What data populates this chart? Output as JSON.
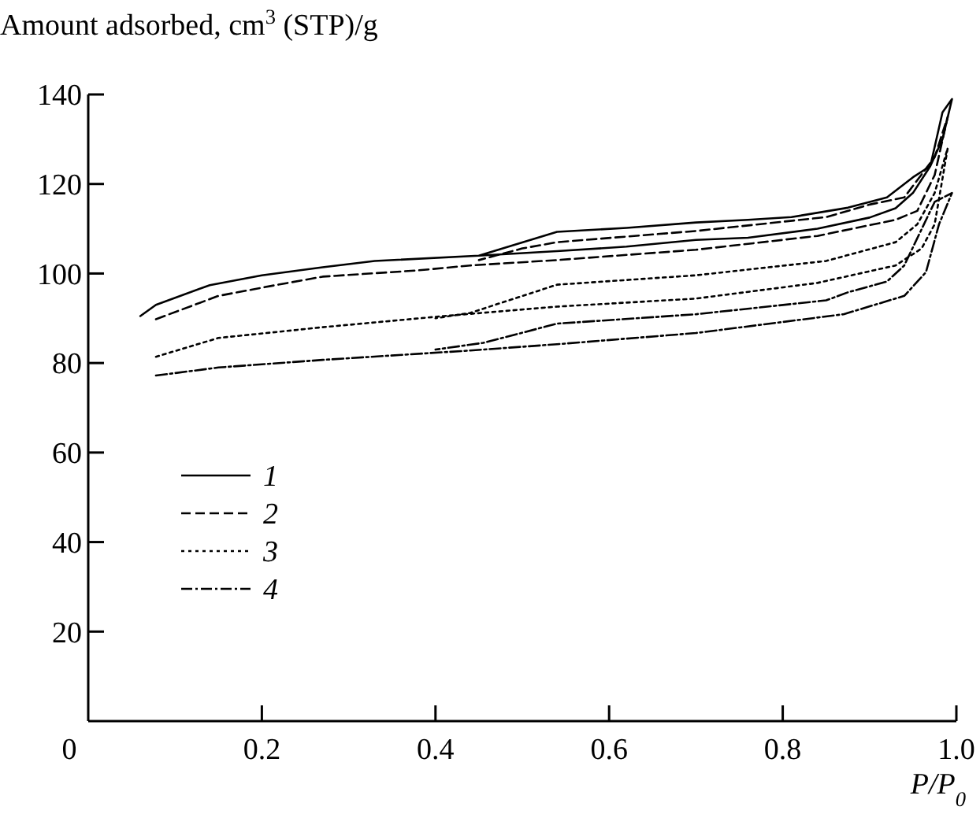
{
  "chart_data": {
    "type": "line",
    "xlabel": "P/P$_{0}$",
    "ylabel": "Amount adsorbed, cm$^{3}$ (STP)/g",
    "xlim": [
      0,
      1
    ],
    "ylim": [
      0,
      140
    ],
    "xticks": [
      0,
      0.2,
      0.4,
      0.6,
      0.8,
      {
        "value": 1,
        "label": "1.0"
      }
    ],
    "yticks": [
      20,
      40,
      60,
      80,
      100,
      120,
      140
    ],
    "grid": false,
    "legend": "left",
    "marker": "none",
    "series": [
      {
        "name": "1",
        "color": "#000000",
        "line_style": "solid",
        "x": [
          0.06,
          0.078,
          0.14,
          0.2,
          0.27,
          0.33,
          0.45,
          0.54,
          0.62,
          0.7,
          0.76,
          0.84,
          0.9,
          0.93,
          0.95,
          0.97,
          0.984,
          0.995,
          0.984,
          0.97,
          0.95,
          0.92,
          0.875,
          0.81,
          0.76,
          0.7,
          0.62,
          0.54,
          0.45
        ],
        "values": [
          90.5,
          93,
          97.4,
          99.6,
          101.4,
          102.8,
          104,
          105,
          106,
          107.5,
          108,
          110,
          112.5,
          114.6,
          118,
          124,
          130,
          139,
          136,
          124,
          121.5,
          117,
          114.7,
          112.6,
          112,
          111.4,
          110.2,
          109.3,
          104
        ]
      },
      {
        "name": "2",
        "color": "#000000",
        "line_style": "dashed",
        "x": [
          0.078,
          0.15,
          0.21,
          0.27,
          0.38,
          0.44,
          0.54,
          0.7,
          0.84,
          0.93,
          0.955,
          0.975,
          0.99,
          0.975,
          0.94,
          0.9,
          0.85,
          0.7,
          0.54,
          0.5,
          0.45
        ],
        "values": [
          89.8,
          95,
          97.2,
          99.3,
          100.7,
          101.8,
          103,
          105.3,
          108.4,
          112,
          114,
          122,
          135,
          126,
          117,
          115.4,
          112.6,
          109.5,
          107,
          105.6,
          103
        ]
      },
      {
        "name": "3",
        "color": "#000000",
        "line_style": "dotted",
        "x": [
          0.078,
          0.15,
          0.27,
          0.41,
          0.54,
          0.7,
          0.84,
          0.93,
          0.96,
          0.975,
          0.99,
          0.975,
          0.955,
          0.93,
          0.85,
          0.7,
          0.54,
          0.44,
          0.4
        ],
        "values": [
          81.4,
          85.6,
          88,
          90.5,
          92.6,
          94.4,
          97.9,
          101.8,
          105.6,
          111,
          128,
          118,
          111,
          107,
          102.8,
          99.6,
          97.5,
          91.2,
          90
        ]
      },
      {
        "name": "4",
        "color": "#000000",
        "line_style": "dashdot",
        "x": [
          0.078,
          0.15,
          0.27,
          0.44,
          0.54,
          0.7,
          0.87,
          0.94,
          0.965,
          0.98,
          0.995,
          0.975,
          0.94,
          0.92,
          0.875,
          0.85,
          0.7,
          0.54,
          0.455,
          0.4
        ],
        "values": [
          77.2,
          79,
          80.7,
          82.8,
          84.2,
          86.7,
          90.9,
          95,
          100.3,
          111,
          118,
          116,
          101.8,
          98.2,
          95.8,
          94,
          90.9,
          88.8,
          84.5,
          83
        ]
      }
    ]
  }
}
